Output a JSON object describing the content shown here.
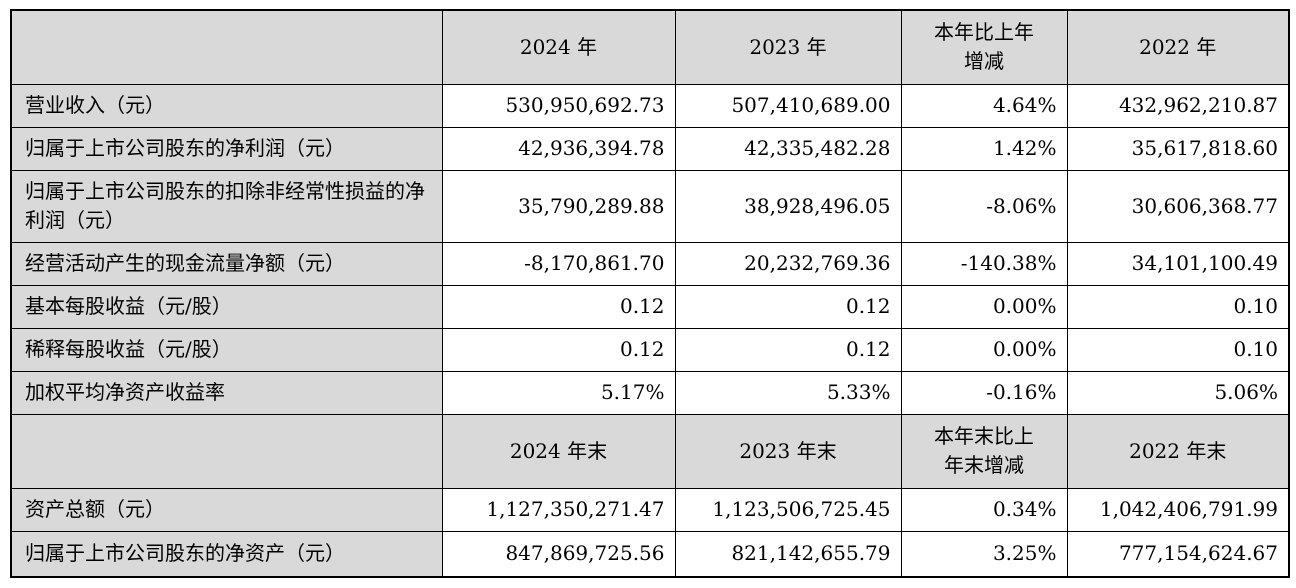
{
  "colors": {
    "header_bg": "#d9d9d9",
    "label_bg": "#d9d9d9",
    "cell_bg": "#ffffff",
    "border": "#000000",
    "text": "#000000",
    "page_bg": "#ffffff"
  },
  "table": {
    "period_headers": [
      "2024 年",
      "2023 年",
      "本年比上年\n增减",
      "2022 年"
    ],
    "period_rows": [
      {
        "label": "营业收入（元）",
        "values": [
          "530,950,692.73",
          "507,410,689.00",
          "4.64%",
          "432,962,210.87"
        ]
      },
      {
        "label": "归属于上市公司股东的净利润（元）",
        "values": [
          "42,936,394.78",
          "42,335,482.28",
          "1.42%",
          "35,617,818.60"
        ]
      },
      {
        "label": "归属于上市公司股东的扣除非经常性损益的净利润（元）",
        "values": [
          "35,790,289.88",
          "38,928,496.05",
          "-8.06%",
          "30,606,368.77"
        ]
      },
      {
        "label": "经营活动产生的现金流量净额（元）",
        "values": [
          "-8,170,861.70",
          "20,232,769.36",
          "-140.38%",
          "34,101,100.49"
        ]
      },
      {
        "label": "基本每股收益（元/股）",
        "values": [
          "0.12",
          "0.12",
          "0.00%",
          "0.10"
        ]
      },
      {
        "label": "稀释每股收益（元/股）",
        "values": [
          "0.12",
          "0.12",
          "0.00%",
          "0.10"
        ]
      },
      {
        "label": "加权平均净资产收益率",
        "values": [
          "5.17%",
          "5.33%",
          "-0.16%",
          "5.06%"
        ]
      }
    ],
    "eoy_headers": [
      "2024 年末",
      "2023 年末",
      "本年末比上\n年末增减",
      "2022 年末"
    ],
    "eoy_rows": [
      {
        "label": "资产总额（元）",
        "values": [
          "1,127,350,271.47",
          "1,123,506,725.45",
          "0.34%",
          "1,042,406,791.99"
        ]
      },
      {
        "label": "归属于上市公司股东的净资产（元）",
        "values": [
          "847,869,725.56",
          "821,142,655.79",
          "3.25%",
          "777,154,624.67"
        ]
      }
    ]
  }
}
